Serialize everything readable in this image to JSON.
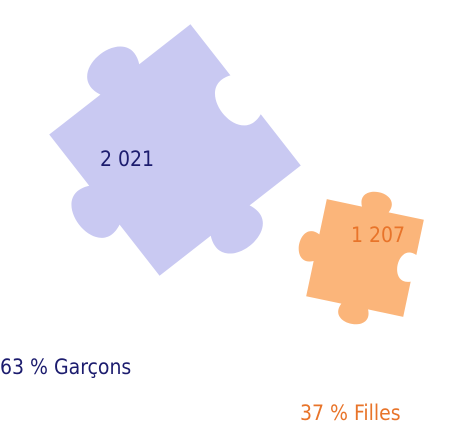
{
  "pieces": [
    {
      "count": "2 021",
      "label": "63 % Garçons"
    },
    {
      "count": "1 207",
      "label": "37 % Filles"
    }
  ]
}
